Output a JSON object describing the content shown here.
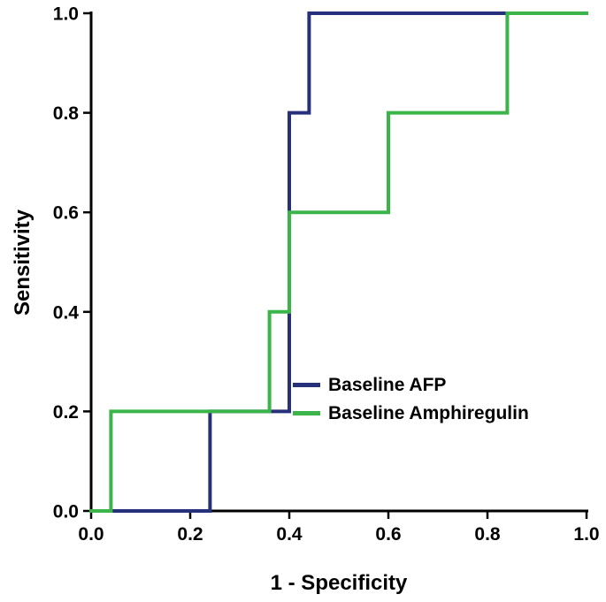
{
  "figure": {
    "background": "#ffffff",
    "axis_color": "#000000",
    "tick_label_color": "#000000"
  },
  "chart_data": {
    "type": "line",
    "subtype": "roc-step-curve",
    "title": "",
    "xlabel": "1 - Specificity",
    "ylabel": "Sensitivity",
    "xlim": [
      0.0,
      1.0
    ],
    "ylim": [
      0.0,
      1.0
    ],
    "x_ticks": [
      "0.0",
      "0.2",
      "0.4",
      "0.6",
      "0.8",
      "1.0"
    ],
    "y_ticks": [
      "0.0",
      "0.2",
      "0.4",
      "0.6",
      "0.8",
      "1.0"
    ],
    "grid": false,
    "legend_position": "inside-center-right",
    "series": [
      {
        "name": "Baseline AFP",
        "color": "#26307b",
        "points": [
          [
            0.0,
            0.0
          ],
          [
            0.24,
            0.0
          ],
          [
            0.24,
            0.2
          ],
          [
            0.4,
            0.2
          ],
          [
            0.4,
            0.8
          ],
          [
            0.44,
            0.8
          ],
          [
            0.44,
            1.0
          ],
          [
            1.0,
            1.0
          ]
        ]
      },
      {
        "name": "Baseline Amphiregulin",
        "color": "#3bb54a",
        "points": [
          [
            0.0,
            0.0
          ],
          [
            0.04,
            0.0
          ],
          [
            0.04,
            0.2
          ],
          [
            0.36,
            0.2
          ],
          [
            0.36,
            0.4
          ],
          [
            0.4,
            0.4
          ],
          [
            0.4,
            0.6
          ],
          [
            0.6,
            0.6
          ],
          [
            0.6,
            0.8
          ],
          [
            0.84,
            0.8
          ],
          [
            0.84,
            1.0
          ],
          [
            1.0,
            1.0
          ]
        ]
      }
    ]
  }
}
